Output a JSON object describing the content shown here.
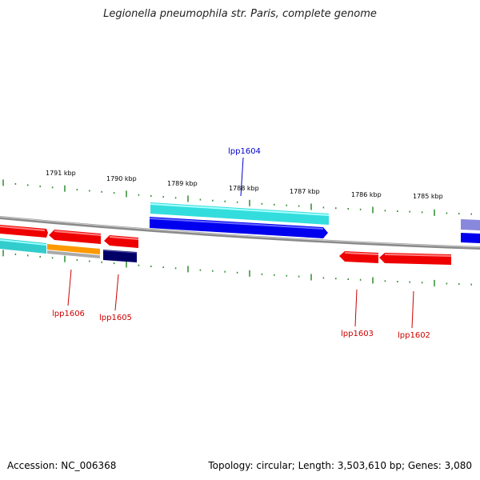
{
  "title": "Legionella pneumophila str. Paris, complete genome",
  "footer": {
    "accession": "Accession: NC_006368",
    "summary": "Topology: circular; Length: 3,503,610 bp; Genes: 3,080"
  },
  "colors": {
    "backbone": "#8a8a8a",
    "tick": "#2e8b2e",
    "forward_label": "#0000cc",
    "reverse_label": "#cc0000",
    "red": "#ee0000",
    "cyan": "#33dddd",
    "blue": "#0000ee",
    "orange": "#ff9900",
    "navy": "#000066",
    "lavender": "#8888dd"
  },
  "scale_labels": [
    "1791 kbp",
    "1790 kbp",
    "1789 kbp",
    "1788 kbp",
    "1787 kbp",
    "1786 kbp",
    "1785 kbp"
  ],
  "gene_labels": [
    {
      "name": "lpp1604",
      "color": "blue"
    },
    {
      "name": "lpp1606",
      "color": "red"
    },
    {
      "name": "lpp1605",
      "color": "red"
    },
    {
      "name": "lpp1603",
      "color": "red"
    },
    {
      "name": "lpp1602",
      "color": "red"
    }
  ]
}
